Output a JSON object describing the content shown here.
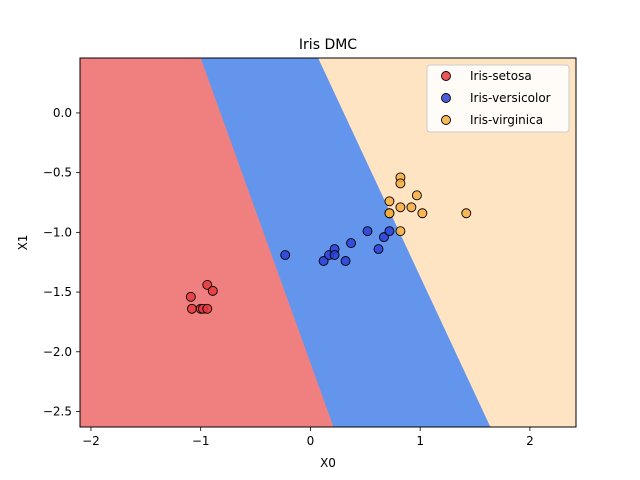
{
  "chart_data": {
    "type": "scatter",
    "title": "Iris DMC",
    "xlabel": "X0",
    "ylabel": "X1",
    "xlim": [
      -2.1,
      2.42
    ],
    "ylim": [
      -2.63,
      0.46
    ],
    "xticks": [
      -2,
      -1,
      0,
      1,
      2
    ],
    "yticks": [
      0.0,
      -0.5,
      -1.0,
      -1.5,
      -2.0,
      -2.5
    ],
    "xtick_labels": [
      "−2",
      "−1",
      "0",
      "1",
      "2"
    ],
    "ytick_labels": [
      "0.0",
      "−0.5",
      "−1.0",
      "−1.5",
      "−2.0",
      "−2.5"
    ],
    "grid": false,
    "legend_position": "top-right",
    "regions": [
      {
        "class": "Iris-setosa",
        "color": "#f08080"
      },
      {
        "class": "Iris-versicolor",
        "color": "#6495ed"
      },
      {
        "class": "Iris-virginica",
        "color": "#ffe4c4"
      }
    ],
    "boundaries": [
      {
        "between": [
          "Iris-setosa",
          "Iris-versicolor"
        ],
        "points": [
          [
            -1.0,
            0.46
          ],
          [
            0.21,
            -2.63
          ]
        ]
      },
      {
        "between": [
          "Iris-versicolor",
          "Iris-virginica"
        ],
        "points": [
          [
            0.07,
            0.46
          ],
          [
            1.64,
            -2.63
          ]
        ]
      }
    ],
    "series": [
      {
        "name": "Iris-setosa",
        "color": "#e8383d",
        "points": [
          [
            -1.09,
            -1.54
          ],
          [
            -1.08,
            -1.64
          ],
          [
            -0.94,
            -1.44
          ],
          [
            -0.89,
            -1.49
          ],
          [
            -1.0,
            -1.64
          ],
          [
            -0.98,
            -1.64
          ],
          [
            -0.94,
            -1.64
          ]
        ]
      },
      {
        "name": "Iris-versicolor",
        "color": "#2b3fd6",
        "points": [
          [
            -0.23,
            -1.19
          ],
          [
            0.12,
            -1.24
          ],
          [
            0.17,
            -1.19
          ],
          [
            0.22,
            -1.14
          ],
          [
            0.22,
            -1.19
          ],
          [
            0.32,
            -1.24
          ],
          [
            0.37,
            -1.09
          ],
          [
            0.52,
            -0.99
          ],
          [
            0.62,
            -1.14
          ],
          [
            0.67,
            -1.04
          ],
          [
            0.72,
            -0.99
          ]
        ]
      },
      {
        "name": "Iris-virginica",
        "color": "#f6ae3f",
        "points": [
          [
            0.72,
            -0.74
          ],
          [
            0.72,
            -0.84
          ],
          [
            0.72,
            -0.84
          ],
          [
            0.82,
            -0.54
          ],
          [
            0.82,
            -0.59
          ],
          [
            0.82,
            -0.79
          ],
          [
            0.82,
            -0.99
          ],
          [
            0.92,
            -0.79
          ],
          [
            0.97,
            -0.69
          ],
          [
            1.02,
            -0.84
          ],
          [
            1.42,
            -0.84
          ]
        ]
      }
    ]
  }
}
